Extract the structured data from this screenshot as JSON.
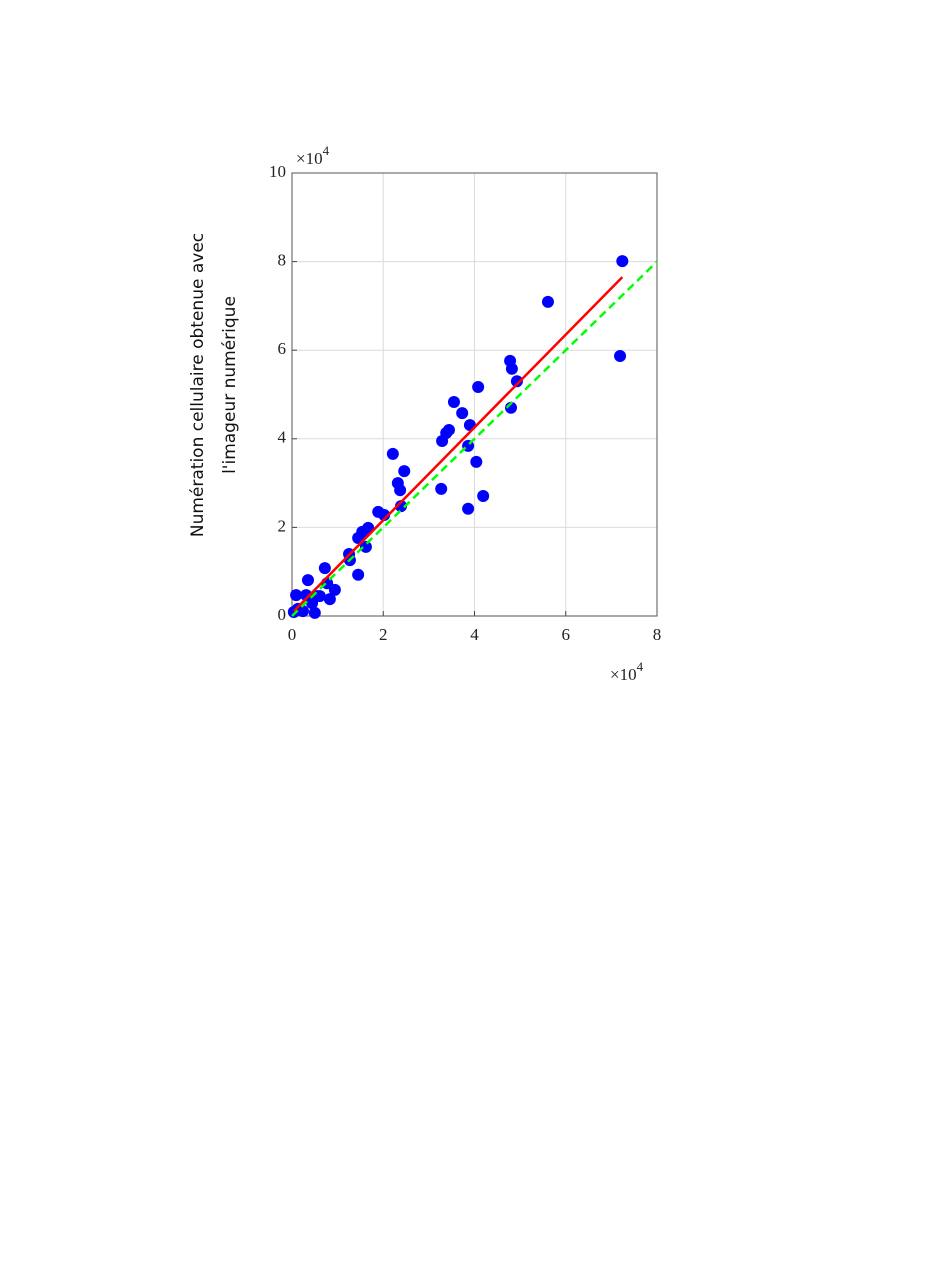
{
  "chart_data": {
    "type": "scatter",
    "y_label": [
      "Numération cellulaire obtenue avec",
      "l'imageur numérique"
    ],
    "x_multiplier": {
      "base": "×10",
      "exponent": "4"
    },
    "y_multiplier": {
      "base": "×10",
      "exponent": "4"
    },
    "xlim": [
      0,
      8
    ],
    "xticks": [
      0,
      2,
      4,
      6,
      8
    ],
    "ylim": [
      0,
      10
    ],
    "yticks": [
      0,
      2,
      4,
      6,
      8,
      10
    ],
    "grid": true,
    "series": [
      {
        "color": "#0000ff",
        "x": [
          7.24,
          7.19,
          5.61,
          4.78,
          4.82,
          4.93,
          4.8,
          4.08,
          3.55,
          3.73,
          3.9,
          3.44,
          3.38,
          3.29,
          3.86,
          4.04,
          3.27,
          4.19,
          3.86,
          2.21,
          2.46,
          2.32,
          2.37,
          2.39,
          1.89,
          2.02,
          1.67,
          1.54,
          1.45,
          1.62,
          1.45,
          1.25,
          1.27,
          0.72,
          0.77,
          0.94,
          0.83,
          0.35,
          0.09,
          0.31,
          0.61,
          0.44,
          0.55,
          0.24,
          0.5,
          0.04,
          0.13
        ],
        "values": [
          8.01,
          5.87,
          7.09,
          5.76,
          5.58,
          5.3,
          4.7,
          5.17,
          4.83,
          4.58,
          4.31,
          4.2,
          4.13,
          3.95,
          3.84,
          3.48,
          2.87,
          2.71,
          2.42,
          3.66,
          3.27,
          3.0,
          2.84,
          2.48,
          2.35,
          2.28,
          1.99,
          1.9,
          1.76,
          1.56,
          0.93,
          1.4,
          1.26,
          1.08,
          0.74,
          0.59,
          0.38,
          0.81,
          0.47,
          0.47,
          0.45,
          0.29,
          0.45,
          0.11,
          0.07,
          0.09,
          0.16
        ]
      }
    ],
    "lines": [
      {
        "color": "#ff0000",
        "dashed": false,
        "x": [
          0.04,
          7.24
        ],
        "values": [
          0.11,
          7.65
        ]
      },
      {
        "color": "#00ff00",
        "dashed": true,
        "x": [
          0,
          8
        ],
        "values": [
          0,
          8
        ]
      }
    ]
  }
}
